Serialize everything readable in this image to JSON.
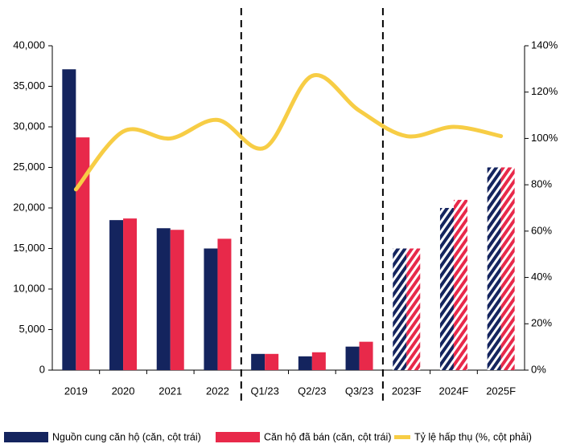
{
  "chart_data": {
    "type": "bar-line",
    "categories": [
      "2019",
      "2020",
      "2021",
      "2022",
      "Q1/23",
      "Q2/23",
      "Q3/23",
      "2023F",
      "2024F",
      "2025F"
    ],
    "series": [
      {
        "name": "Nguồn cung căn hộ (căn, cột trái)",
        "color": "#14245e",
        "type": "bar",
        "values": [
          37100,
          18500,
          17500,
          15000,
          2000,
          1700,
          2900,
          15000,
          20000,
          25000
        ]
      },
      {
        "name": "Căn hộ đã bán (căn, cột trái)",
        "color": "#e8294a",
        "type": "bar",
        "values": [
          28700,
          18700,
          17300,
          16200,
          2000,
          2200,
          3500,
          15000,
          21000,
          25000
        ]
      },
      {
        "name": "Tỷ lệ hấp thụ (%, cột phải)",
        "color": "#f7cd45",
        "type": "line",
        "axis": "y2",
        "values": [
          78,
          103,
          100,
          108,
          96,
          127,
          112,
          101,
          105,
          101
        ]
      }
    ],
    "hatched": [
      false,
      false,
      false,
      false,
      false,
      false,
      false,
      true,
      true,
      true
    ],
    "ylim": [
      0,
      40000
    ],
    "yticks": [
      {
        "value": 0,
        "label": "0"
      },
      {
        "value": 5000,
        "label": "5,000"
      },
      {
        "value": 10000,
        "label": "10,000"
      },
      {
        "value": 15000,
        "label": "15,000"
      },
      {
        "value": 20000,
        "label": "20,000"
      },
      {
        "value": 25000,
        "label": "25,000"
      },
      {
        "value": 30000,
        "label": "30,000"
      },
      {
        "value": 35000,
        "label": "35,000"
      },
      {
        "value": 40000,
        "label": "40,000"
      }
    ],
    "y2lim": [
      0,
      140
    ],
    "y2ticks": [
      {
        "value": 0,
        "label": "0%"
      },
      {
        "value": 20,
        "label": "20%"
      },
      {
        "value": 40,
        "label": "40%"
      },
      {
        "value": 60,
        "label": "60%"
      },
      {
        "value": 80,
        "label": "80%"
      },
      {
        "value": 100,
        "label": "100%"
      },
      {
        "value": 120,
        "label": "120%"
      },
      {
        "value": 140,
        "label": "140%"
      }
    ],
    "legend": "bottom"
  }
}
